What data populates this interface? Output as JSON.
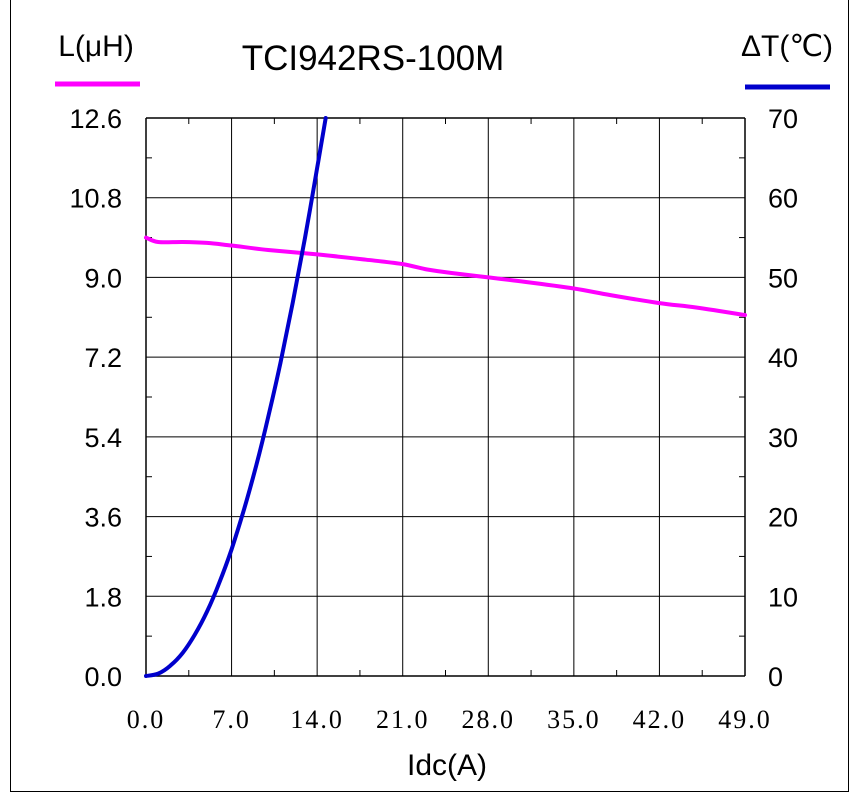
{
  "chart_data": {
    "type": "line",
    "title": "TCI942RS-100M",
    "xlabel": "Idc(A)",
    "ylabel_left": "L(μH)",
    "ylabel_right": "ΔT(℃)",
    "xlim": [
      0,
      49
    ],
    "ylim_left": [
      0,
      12.6
    ],
    "ylim_right": [
      0,
      70
    ],
    "x_ticks": [
      "0.0",
      "7.0",
      "14.0",
      "21.0",
      "28.0",
      "35.0",
      "42.0",
      "49.0"
    ],
    "y_left_ticks": [
      "0.0",
      "1.8",
      "3.6",
      "5.4",
      "7.2",
      "9.0",
      "10.8",
      "12.6"
    ],
    "y_right_ticks": [
      "0",
      "10",
      "20",
      "30",
      "40",
      "50",
      "60",
      "70"
    ],
    "grid": true,
    "series": [
      {
        "name": "L(μH)",
        "axis": "left",
        "color": "#ff00ff",
        "points": [
          [
            0,
            9.9
          ],
          [
            1,
            9.8
          ],
          [
            3,
            9.8
          ],
          [
            5,
            9.78
          ],
          [
            7,
            9.72
          ],
          [
            10,
            9.62
          ],
          [
            14,
            9.52
          ],
          [
            18,
            9.4
          ],
          [
            21,
            9.3
          ],
          [
            23,
            9.18
          ],
          [
            25,
            9.1
          ],
          [
            28,
            9.0
          ],
          [
            31,
            8.9
          ],
          [
            35,
            8.75
          ],
          [
            38,
            8.6
          ],
          [
            42,
            8.42
          ],
          [
            45,
            8.32
          ],
          [
            49,
            8.15
          ]
        ]
      },
      {
        "name": "ΔT(℃)",
        "axis": "right",
        "color": "#0000cc",
        "points": [
          [
            0,
            0
          ],
          [
            1,
            0.3
          ],
          [
            2,
            1.3
          ],
          [
            3,
            2.9
          ],
          [
            4,
            5.2
          ],
          [
            5,
            8.1
          ],
          [
            6,
            11.7
          ],
          [
            7,
            15.9
          ],
          [
            8,
            20.8
          ],
          [
            9,
            26.3
          ],
          [
            10,
            32.5
          ],
          [
            11,
            39.3
          ],
          [
            12,
            46.8
          ],
          [
            13,
            54.9
          ],
          [
            14,
            63.7
          ],
          [
            14.7,
            70
          ]
        ]
      }
    ]
  }
}
